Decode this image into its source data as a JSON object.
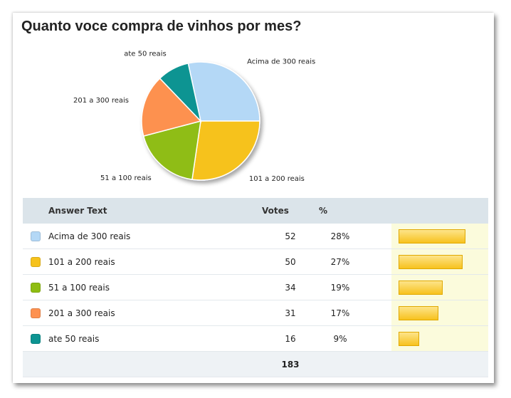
{
  "poll": {
    "title": "Quanto voce compra de vinhos por mes?",
    "table": {
      "headers": {
        "answer": "Answer Text",
        "votes": "Votes",
        "percent": "%"
      },
      "total": "183"
    }
  },
  "chart_data": {
    "type": "pie",
    "title": "Quanto voce compra de vinhos por mes?",
    "categories": [
      "Acima de 300 reais",
      "101 a 200 reais",
      "51 a 100 reais",
      "201 a 300 reais",
      "ate 50 reais"
    ],
    "values": [
      52,
      50,
      34,
      31,
      16
    ],
    "percent_labels": [
      "28%",
      "27%",
      "19%",
      "17%",
      "9%"
    ],
    "colors": [
      "#b4d8f6",
      "#f6c21c",
      "#8fbd12",
      "#fd9150",
      "#0d9492"
    ],
    "total": 183
  }
}
